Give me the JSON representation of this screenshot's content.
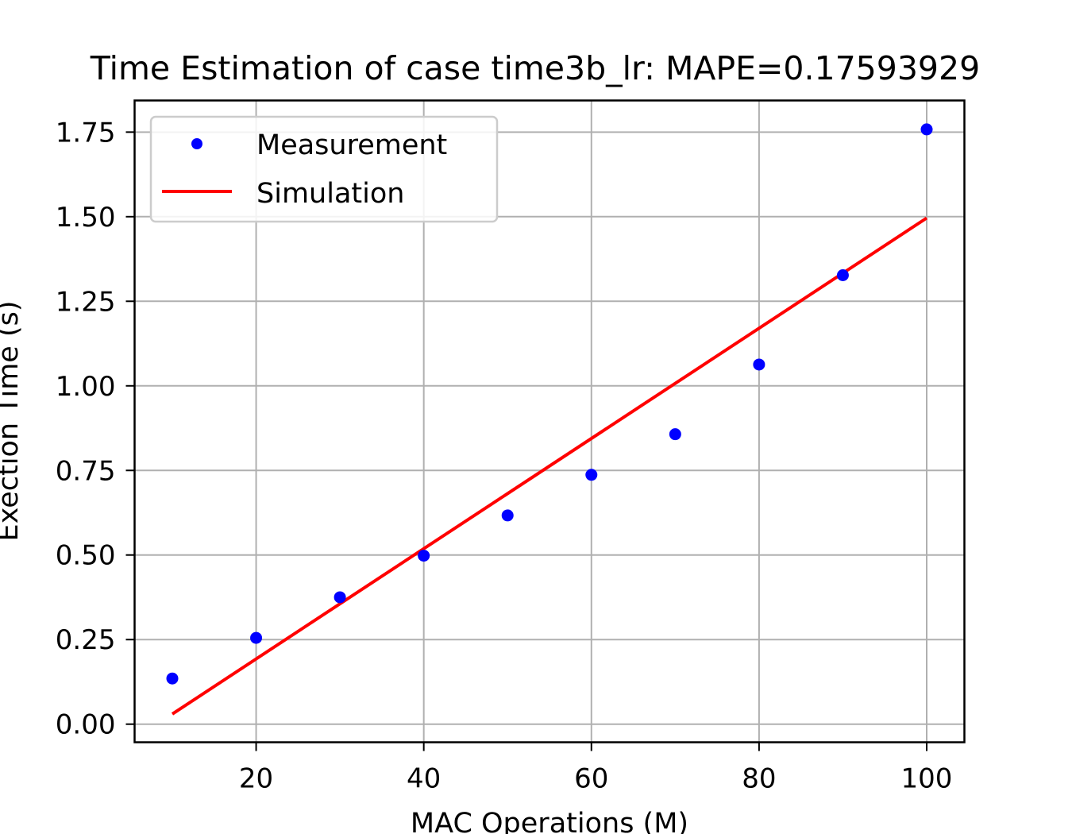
{
  "chart_data": {
    "type": "scatter",
    "title": "Time Estimation of case time3b_lr: MAPE=0.17593929",
    "xlabel": "MAC Operations (M)",
    "ylabel": "Exection Time (s)",
    "xlim": [
      5.5,
      104.5
    ],
    "ylim": [
      -0.0535,
      1.8435
    ],
    "xticks": [
      20,
      40,
      60,
      80,
      100
    ],
    "xtick_labels": [
      "20",
      "40",
      "60",
      "80",
      "100"
    ],
    "yticks": [
      0,
      0.25,
      0.5,
      0.75,
      1.0,
      1.25,
      1.5,
      1.75
    ],
    "ytick_labels": [
      "0.00",
      "0.25",
      "0.50",
      "0.75",
      "1.00",
      "1.25",
      "1.50",
      "1.75"
    ],
    "grid": true,
    "legend_position": "upper-left",
    "series": [
      {
        "name": "Measurement",
        "kind": "points",
        "color": "#0000ff",
        "x": [
          10,
          20,
          30,
          40,
          50,
          60,
          70,
          80,
          90,
          100
        ],
        "y": [
          0.135,
          0.255,
          0.375,
          0.498,
          0.617,
          0.737,
          0.857,
          1.063,
          1.327,
          1.758
        ]
      },
      {
        "name": "Simulation",
        "kind": "line",
        "color": "#ff0000",
        "x": [
          10,
          100
        ],
        "y": [
          0.03,
          1.496
        ]
      }
    ]
  }
}
